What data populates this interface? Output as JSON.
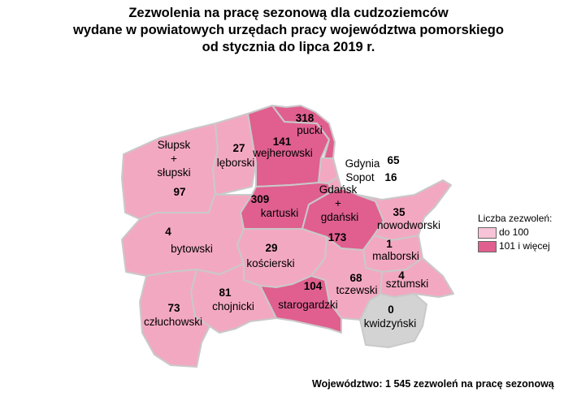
{
  "title_lines": [
    "Zezwolenia na pracę sezonową dla cudzoziemców",
    "wydane w powiatowych urzędach pracy województwa pomorskiego",
    "od stycznia do lipca 2019 r."
  ],
  "colors": {
    "low": "#f3a8c1",
    "high": "#e05f8f",
    "zero": "#d3d3d3",
    "border": "#c9c9c9"
  },
  "legend": {
    "title": "Liczba zezwoleń:",
    "items": [
      {
        "label": "do 100",
        "color": "#f6c4d6"
      },
      {
        "label": "101 i więcej",
        "color": "#e05f8f"
      }
    ]
  },
  "regions": {
    "slupsk": {
      "name_lines": [
        "Słupsk",
        "+",
        "słupski"
      ],
      "value": "97"
    },
    "leborski": {
      "name_lines": [
        "lęborski"
      ],
      "value": "27"
    },
    "wejherowski": {
      "name_lines": [
        "wejherowski"
      ],
      "value": "141"
    },
    "pucki": {
      "name_lines": [
        "pucki"
      ],
      "value": "318"
    },
    "gdynia": {
      "name_lines": [
        "Gdynia"
      ],
      "value": "65"
    },
    "sopot": {
      "name_lines": [
        "Sopot"
      ],
      "value": "16"
    },
    "kartuski": {
      "name_lines": [
        "kartuski"
      ],
      "value": "309"
    },
    "gdansk": {
      "name_lines": [
        "Gdańsk",
        "+",
        "gdański"
      ],
      "value": "173"
    },
    "nowodworski": {
      "name_lines": [
        "nowodworski"
      ],
      "value": "35"
    },
    "bytowski": {
      "name_lines": [
        "bytowski"
      ],
      "value": "4"
    },
    "koscierski": {
      "name_lines": [
        "kościerski"
      ],
      "value": "29"
    },
    "malborski": {
      "name_lines": [
        "malborski"
      ],
      "value": "1"
    },
    "sztumski": {
      "name_lines": [
        "sztumski"
      ],
      "value": "4"
    },
    "tczewski": {
      "name_lines": [
        "tczewski"
      ],
      "value": "68"
    },
    "starogardzki": {
      "name_lines": [
        "starogardzki"
      ],
      "value": "104"
    },
    "chojnicki": {
      "name_lines": [
        "chojnicki"
      ],
      "value": "81"
    },
    "czluchowski": {
      "name_lines": [
        "człuchowski"
      ],
      "value": "73"
    },
    "kwidzynski": {
      "name_lines": [
        "kwidzyński"
      ],
      "value": "0"
    }
  },
  "footer": "Województwo: 1 545 zezwoleń na pracę sezonową"
}
